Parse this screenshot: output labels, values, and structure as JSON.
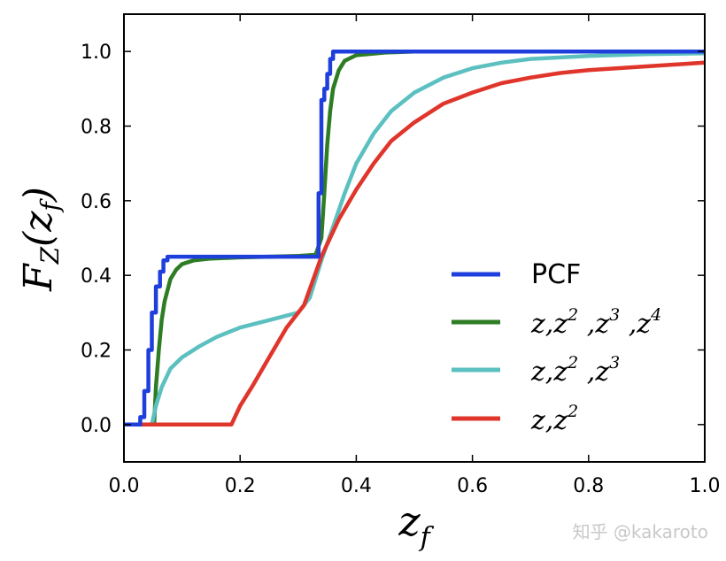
{
  "chart_data": {
    "type": "line",
    "xlabel": "z_f",
    "ylabel": "F_Z(z_f)",
    "xlim": [
      0.0,
      1.0
    ],
    "ylim": [
      -0.1,
      1.1
    ],
    "xticks": [
      "0.0",
      "0.2",
      "0.4",
      "0.6",
      "0.8",
      "1.0"
    ],
    "yticks": [
      "0.0",
      "0.2",
      "0.4",
      "0.6",
      "0.8",
      "1.0"
    ],
    "grid": false,
    "legend_position": "lower-right",
    "series": [
      {
        "name": "PCF",
        "color": "#1f3fdc",
        "x": [
          0.0,
          0.028,
          0.028,
          0.035,
          0.035,
          0.042,
          0.042,
          0.048,
          0.048,
          0.055,
          0.055,
          0.062,
          0.062,
          0.068,
          0.068,
          0.075,
          0.075,
          0.082,
          0.082,
          0.335,
          0.335,
          0.34,
          0.34,
          0.345,
          0.345,
          0.35,
          0.35,
          0.355,
          0.355,
          0.36,
          0.36,
          1.0
        ],
        "y": [
          0.0,
          0.0,
          0.02,
          0.02,
          0.09,
          0.09,
          0.2,
          0.2,
          0.3,
          0.3,
          0.37,
          0.37,
          0.41,
          0.41,
          0.44,
          0.44,
          0.45,
          0.45,
          0.45,
          0.45,
          0.62,
          0.62,
          0.87,
          0.87,
          0.9,
          0.9,
          0.94,
          0.94,
          0.98,
          0.98,
          1.0,
          1.0
        ]
      },
      {
        "name": "z,z^2,z^3,z^4",
        "color": "#2e7d25",
        "x": [
          0.0,
          0.052,
          0.055,
          0.06,
          0.065,
          0.07,
          0.08,
          0.09,
          0.1,
          0.12,
          0.15,
          0.2,
          0.25,
          0.3,
          0.33,
          0.34,
          0.345,
          0.35,
          0.355,
          0.36,
          0.37,
          0.38,
          0.4,
          0.45,
          0.5,
          1.0
        ],
        "y": [
          0.0,
          0.0,
          0.1,
          0.2,
          0.28,
          0.33,
          0.39,
          0.415,
          0.43,
          0.44,
          0.445,
          0.448,
          0.45,
          0.452,
          0.455,
          0.5,
          0.62,
          0.75,
          0.84,
          0.9,
          0.95,
          0.975,
          0.99,
          0.997,
          1.0,
          1.0
        ]
      },
      {
        "name": "z,z^2,z^3",
        "color": "#5cc0c0",
        "x": [
          0.0,
          0.048,
          0.055,
          0.065,
          0.08,
          0.1,
          0.13,
          0.16,
          0.2,
          0.25,
          0.3,
          0.32,
          0.34,
          0.36,
          0.38,
          0.4,
          0.43,
          0.46,
          0.5,
          0.55,
          0.6,
          0.65,
          0.7,
          0.8,
          0.9,
          1.0
        ],
        "y": [
          0.0,
          0.0,
          0.05,
          0.1,
          0.15,
          0.18,
          0.21,
          0.235,
          0.26,
          0.28,
          0.3,
          0.34,
          0.44,
          0.53,
          0.62,
          0.7,
          0.78,
          0.84,
          0.89,
          0.93,
          0.955,
          0.97,
          0.98,
          0.988,
          0.993,
          0.995
        ]
      },
      {
        "name": "z,z^2",
        "color": "#e0352b",
        "x": [
          0.0,
          0.185,
          0.2,
          0.22,
          0.25,
          0.28,
          0.31,
          0.34,
          0.37,
          0.4,
          0.43,
          0.46,
          0.5,
          0.55,
          0.6,
          0.65,
          0.7,
          0.75,
          0.8,
          0.85,
          0.9,
          0.95,
          1.0
        ],
        "y": [
          0.0,
          0.0,
          0.05,
          0.1,
          0.18,
          0.26,
          0.32,
          0.45,
          0.55,
          0.63,
          0.7,
          0.76,
          0.81,
          0.86,
          0.89,
          0.915,
          0.93,
          0.942,
          0.95,
          0.955,
          0.96,
          0.965,
          0.97
        ]
      }
    ]
  },
  "watermark": "知乎 @kakaroto"
}
